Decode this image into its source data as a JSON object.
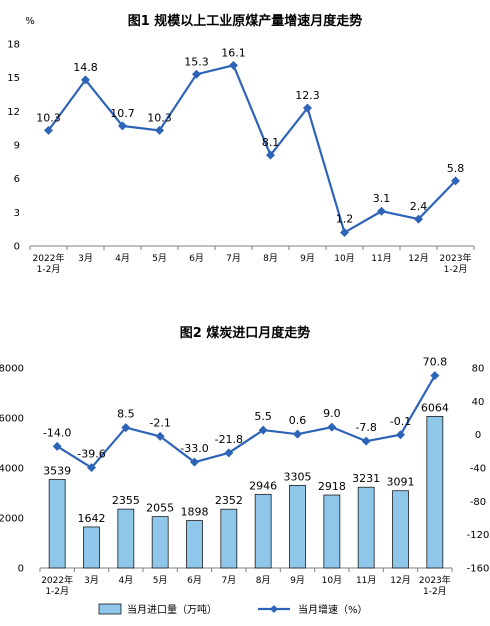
{
  "chart_data": [
    {
      "type": "line",
      "title": "图1  规模以上工业原煤产量增速月度走势",
      "ylabel": "%",
      "ylim": [
        0,
        18
      ],
      "yticks": [
        0,
        3,
        6,
        9,
        12,
        15,
        18
      ],
      "categories": [
        [
          "2022年",
          "1-2月"
        ],
        [
          "3月"
        ],
        [
          "4月"
        ],
        [
          "5月"
        ],
        [
          "6月"
        ],
        [
          "7月"
        ],
        [
          "8月"
        ],
        [
          "9月"
        ],
        [
          "10月"
        ],
        [
          "11月"
        ],
        [
          "12月"
        ],
        [
          "2023年",
          "1-2月"
        ]
      ],
      "values": [
        10.3,
        14.8,
        10.7,
        10.3,
        15.3,
        16.1,
        8.1,
        12.3,
        1.2,
        3.1,
        2.4,
        5.8
      ],
      "color": "#2e64b8"
    },
    {
      "type": "bar+line",
      "title": "图2  煤炭进口月度走势",
      "categories": [
        [
          "2022年",
          "1-2月"
        ],
        [
          "3月"
        ],
        [
          "4月"
        ],
        [
          "5月"
        ],
        [
          "6月"
        ],
        [
          "7月"
        ],
        [
          "8月"
        ],
        [
          "9月"
        ],
        [
          "10月"
        ],
        [
          "11月"
        ],
        [
          "12月"
        ],
        [
          "2023年",
          "1-2月"
        ]
      ],
      "left_axis": {
        "ylim": [
          0,
          8000
        ],
        "yticks": [
          0,
          2000,
          4000,
          6000,
          8000
        ]
      },
      "right_axis": {
        "ylim": [
          -160,
          80
        ],
        "yticks": [
          -160,
          -120,
          -80,
          -40,
          0,
          40,
          80
        ]
      },
      "series": [
        {
          "name": "当月进口量（万吨）",
          "type": "bar",
          "axis": "left",
          "values": [
            3539,
            1642,
            2355,
            2055,
            1898,
            2352,
            2946,
            3305,
            2918,
            3231,
            3091,
            6064
          ],
          "color": "#8ec7ea"
        },
        {
          "name": "当月增速（%）",
          "type": "line",
          "axis": "right",
          "values": [
            -14.0,
            -39.6,
            8.5,
            -2.1,
            -33.0,
            -21.8,
            5.5,
            0.6,
            9.0,
            -7.8,
            -0.1,
            70.8
          ],
          "color": "#2e64b8"
        }
      ],
      "legend": "bottom"
    }
  ]
}
